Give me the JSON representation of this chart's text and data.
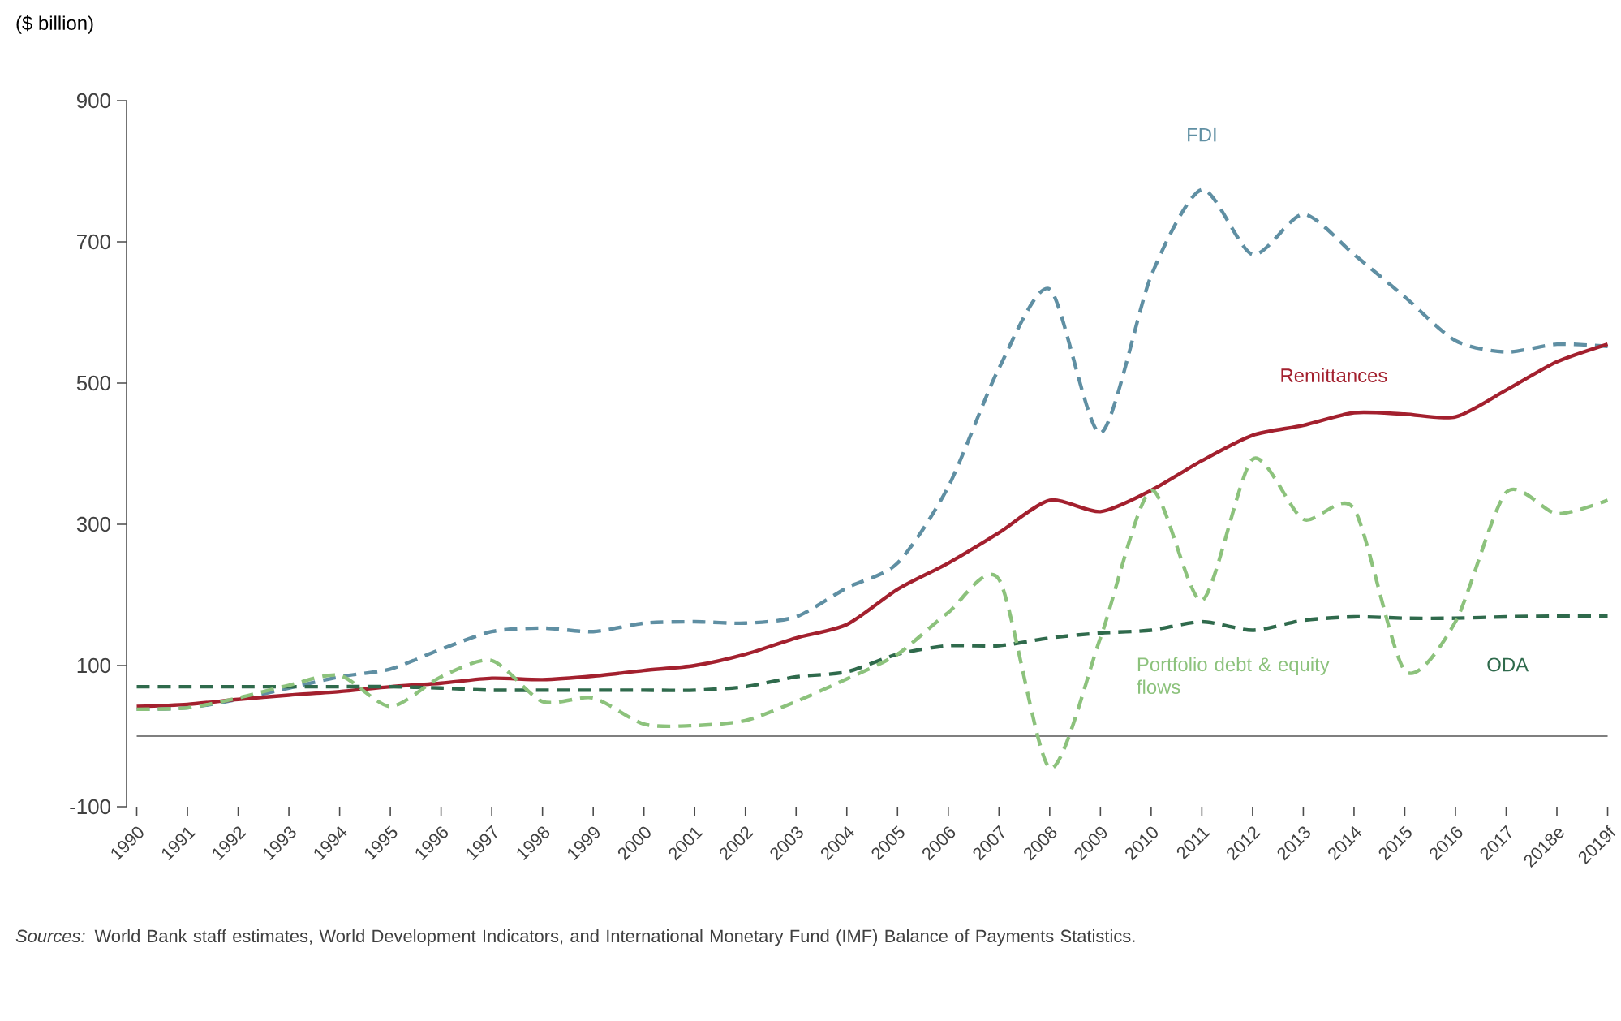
{
  "chart_data": {
    "type": "line",
    "ylabel": "($ billion)",
    "categories": [
      "1990",
      "1991",
      "1992",
      "1993",
      "1994",
      "1995",
      "1996",
      "1997",
      "1998",
      "1999",
      "2000",
      "2001",
      "2002",
      "2003",
      "2004",
      "2005",
      "2006",
      "2007",
      "2008",
      "2009",
      "2010",
      "2011",
      "2012",
      "2013",
      "2014",
      "2015",
      "2016",
      "2017",
      "2018e",
      "2019f"
    ],
    "series": [
      {
        "name": "FDI",
        "color": "#5f8fa3",
        "line_style": "dashed",
        "values": [
          38,
          40,
          52,
          68,
          84,
          95,
          123,
          148,
          153,
          148,
          160,
          162,
          160,
          169,
          210,
          245,
          353,
          521,
          633,
          429,
          652,
          774,
          682,
          739,
          682,
          622,
          560,
          544,
          555,
          552
        ]
      },
      {
        "name": "Remittances",
        "color": "#a3202e",
        "line_style": "solid",
        "values": [
          42,
          45,
          52,
          58,
          63,
          70,
          75,
          82,
          80,
          85,
          93,
          100,
          116,
          139,
          158,
          208,
          245,
          288,
          334,
          318,
          348,
          390,
          426,
          440,
          458,
          456,
          452,
          490,
          530,
          555
        ]
      },
      {
        "name": "ODA",
        "color": "#2f6a4c",
        "line_style": "dashed",
        "values": [
          70,
          70,
          70,
          70,
          70,
          70,
          68,
          65,
          65,
          65,
          65,
          65,
          70,
          84,
          91,
          116,
          128,
          128,
          139,
          146,
          150,
          162,
          150,
          164,
          169,
          167,
          167,
          169,
          170,
          170
        ]
      },
      {
        "name": "Portfolio debt & equity flows",
        "color": "#8cc27c",
        "line_style": "dashed",
        "values": [
          38,
          40,
          54,
          72,
          86,
          42,
          84,
          107,
          49,
          54,
          17,
          15,
          22,
          49,
          81,
          116,
          175,
          222,
          -45,
          139,
          348,
          192,
          392,
          307,
          322,
          93,
          162,
          345,
          315,
          334
        ]
      }
    ],
    "ylim": [
      -100,
      900
    ],
    "yticks": [
      -100,
      100,
      300,
      500,
      700,
      900
    ],
    "ref_lines": [
      {
        "axis": "y",
        "value": 0,
        "color": "#555555"
      }
    ],
    "grid": false,
    "marker": "none",
    "annotations": [
      "*Sources:* World Bank staff estimates, World Development Indicators, and International Monetary Fund (IMF) Balance of Payments Statistics."
    ]
  }
}
